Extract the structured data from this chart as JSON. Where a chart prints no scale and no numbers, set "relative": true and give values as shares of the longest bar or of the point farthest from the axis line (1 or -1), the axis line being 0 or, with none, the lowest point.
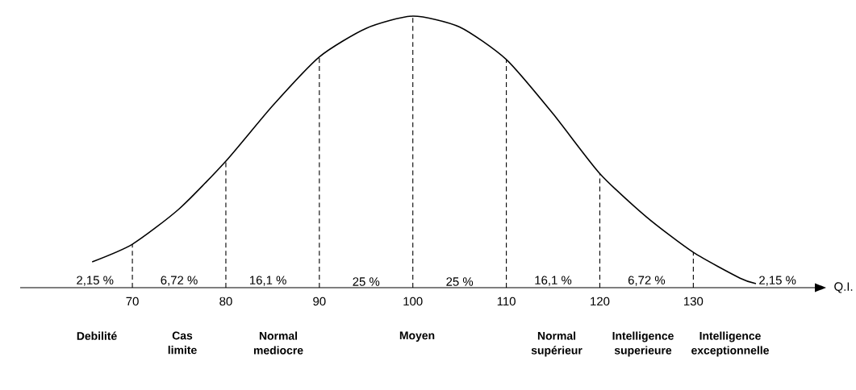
{
  "chart_data": {
    "type": "line",
    "relative": true,
    "color": "#000000",
    "xlabel": "Q.I.",
    "x": [
      65.7,
      70,
      75,
      80,
      85,
      90,
      95,
      100,
      105,
      110,
      115,
      120,
      125,
      130,
      135,
      136.7
    ],
    "values": [
      0.095,
      0.16,
      0.29,
      0.466,
      0.67,
      0.85,
      0.955,
      1,
      0.96,
      0.84,
      0.64,
      0.42,
      0.26,
      0.13,
      0.035,
      0.015
    ],
    "xlim": [
      58,
      143
    ],
    "xticks": [
      70,
      80,
      90,
      100,
      110,
      120,
      130
    ],
    "grid": false,
    "marker": "none",
    "line_style": "solid",
    "ref_lines": [
      {
        "axis": "x",
        "value": 70,
        "line_style": "dashed"
      },
      {
        "axis": "x",
        "value": 80,
        "line_style": "dashed"
      },
      {
        "axis": "x",
        "value": 90,
        "line_style": "dashed"
      },
      {
        "axis": "x",
        "value": 100,
        "line_style": "dashed"
      },
      {
        "axis": "x",
        "value": 110,
        "line_style": "dashed"
      },
      {
        "axis": "x",
        "value": 120,
        "line_style": "dashed"
      },
      {
        "axis": "x",
        "value": 130,
        "line_style": "dashed"
      }
    ],
    "annotations": [
      "2,15 %",
      "6,72 %",
      "16,1 %",
      "25 %",
      "25 %",
      "16,1 %",
      "6,72 %",
      "2,15 %",
      "Debilité",
      "Cas limite",
      "Normal mediocre",
      "Moyen",
      "Normal supérieur",
      "Intelligence superieure",
      "Intelligence exceptionnelle"
    ]
  }
}
